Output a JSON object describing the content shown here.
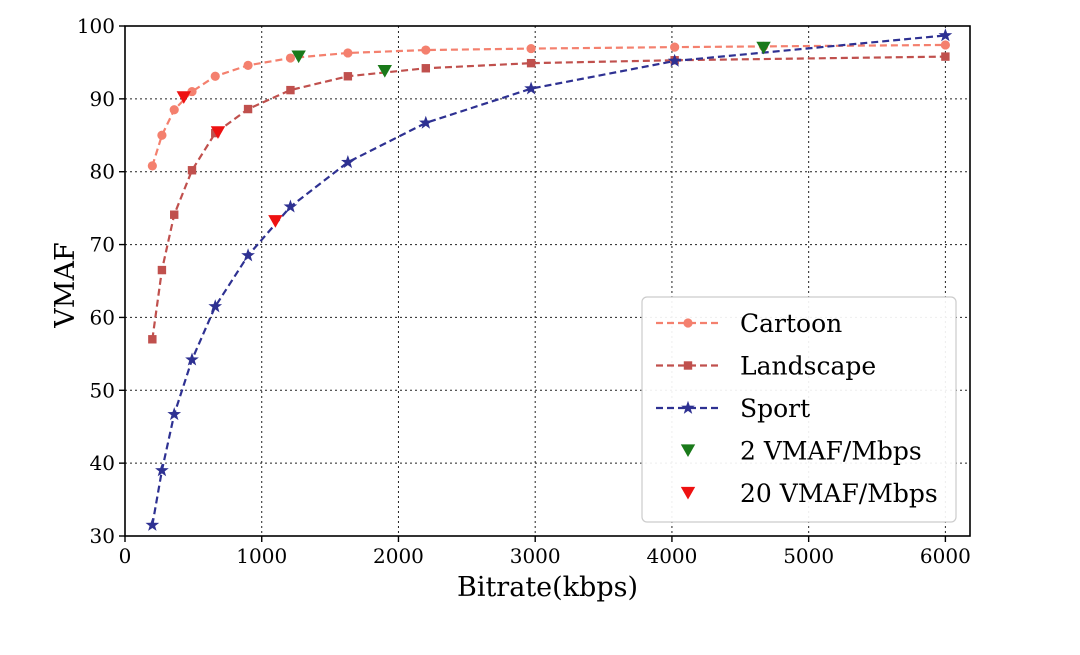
{
  "chart_data": {
    "type": "line",
    "xlabel": "Bitrate(kbps)",
    "ylabel": "VMAF",
    "xlim": [
      0,
      6180
    ],
    "ylim": [
      30,
      100
    ],
    "xticks": [
      0,
      1000,
      2000,
      3000,
      4000,
      5000,
      6000
    ],
    "yticks": [
      30,
      40,
      50,
      60,
      70,
      80,
      90,
      100
    ],
    "grid": true,
    "legend_position": "bottom-right",
    "series": [
      {
        "name": "Cartoon",
        "color": "#f4806e",
        "marker": "circle",
        "x": [
          200,
          270,
          360,
          490,
          660,
          900,
          1210,
          1630,
          2200,
          2970,
          4020,
          4670,
          6000
        ],
        "y": [
          80.8,
          85,
          88.5,
          91,
          93.1,
          94.6,
          95.6,
          96.3,
          96.7,
          96.9,
          97.1,
          97.2,
          97.4
        ]
      },
      {
        "name": "Landscape",
        "color": "#c0504d",
        "marker": "square",
        "x": [
          200,
          270,
          360,
          490,
          660,
          900,
          1210,
          1630,
          2200,
          2970,
          4020,
          6000
        ],
        "y": [
          57,
          66.5,
          74.1,
          80.2,
          85.3,
          88.6,
          91.2,
          93.1,
          94.2,
          94.9,
          95.3,
          95.8
        ]
      },
      {
        "name": "Sport",
        "color": "#2e3192",
        "marker": "star",
        "x": [
          200,
          270,
          360,
          490,
          660,
          900,
          1210,
          1630,
          2200,
          2970,
          4020,
          6000
        ],
        "y": [
          31.5,
          39,
          46.7,
          54.2,
          61.5,
          68.5,
          75.2,
          81.3,
          86.7,
          91.4,
          95.2,
          98.7
        ]
      },
      {
        "name": "2 VMAF/Mbps",
        "color": "#1a7a1a",
        "marker": "triangle-down",
        "x": [
          1270,
          1900,
          4670
        ],
        "y": [
          95.8,
          93.8,
          97
        ]
      },
      {
        "name": "20 VMAF/Mbps",
        "color": "#ee1111",
        "marker": "triangle-down",
        "x": [
          430,
          680,
          1100
        ],
        "y": [
          90.2,
          85.4,
          73.2
        ]
      }
    ]
  }
}
